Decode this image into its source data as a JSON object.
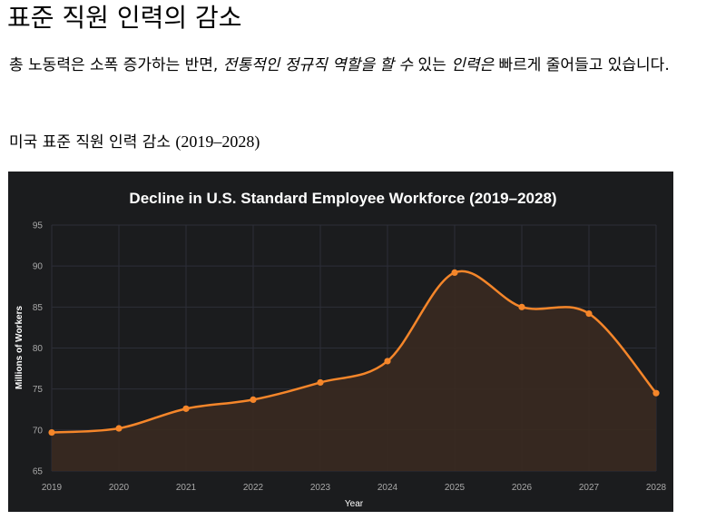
{
  "page": {
    "title": "표준 직원 인력의 감소",
    "intro_before": "총 노동력은 소폭 증가하는 반면, ",
    "intro_italic_1": "전통적인 정규직 역할을 할 수",
    "intro_middle": " 있는 ",
    "intro_italic_2": "인력은",
    "intro_after": " 빠르게 줄어들고 있습니다.",
    "caption_text": "미국 표준 직원 인력 감소 ",
    "caption_years": "(2019–2028)"
  },
  "colors": {
    "background": "#1b1c1e",
    "line": "#f5862a",
    "area": "#3a2a20",
    "grid": "#2c2e38",
    "text": "#ffffff",
    "tick": "#a9a9a9"
  },
  "chart_data": {
    "type": "area",
    "title": "Decline in U.S. Standard Employee Workforce (2019–2028)",
    "xlabel": "Year",
    "ylabel": "Millions of Workers",
    "categories": [
      "2019",
      "2020",
      "2021",
      "2022",
      "2023",
      "2024",
      "2025",
      "2026",
      "2027",
      "2028"
    ],
    "series": [
      {
        "values": [
          69.7,
          70.2,
          72.6,
          73.7,
          75.8,
          78.4,
          89.2,
          85.0,
          84.2,
          74.5
        ]
      }
    ],
    "ylim": [
      65,
      95
    ],
    "yticks": [
      65,
      70,
      75,
      80,
      85,
      90,
      95
    ],
    "grid": true,
    "legend": "none",
    "smooth": true
  }
}
